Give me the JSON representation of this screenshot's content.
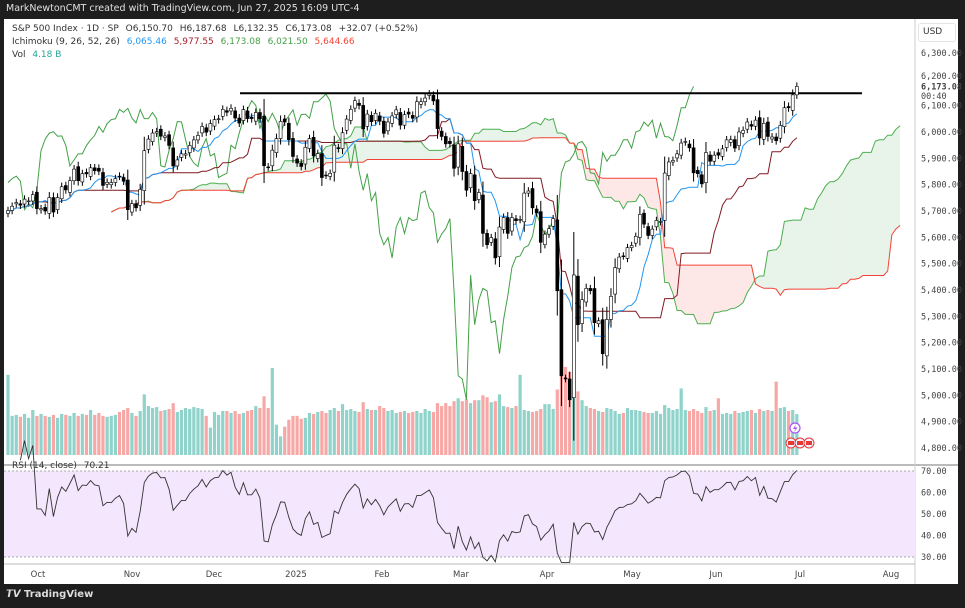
{
  "header": {
    "attribution": "MarkNewtonCMT created with TradingView.com, Jun 27, 2025 16:09 UTC-4"
  },
  "legend": {
    "symbol": "S&P 500 Index · 1D · SP",
    "open": "O6,150.70",
    "high": "H6,187.68",
    "low": "L6,132.35",
    "close": "C6,173.08",
    "change": "+32.07 (+0.52%)",
    "ichimoku_label": "Ichimoku (9, 26, 52, 26)",
    "ichimoku_values": [
      "6,065.46",
      "5,977.55",
      "6,173.08",
      "6,021.50",
      "5,644.66"
    ],
    "vol_label": "Vol",
    "vol_value": "4.18 B",
    "rsi_label": "RSI (14, close)",
    "rsi_value": "70.21"
  },
  "price_axis": {
    "currency": "USD",
    "ticks": [
      "6,300.00",
      "6,200.00",
      "6,100.00",
      "6,000.00",
      "5,900.00",
      "5,800.00",
      "5,700.00",
      "5,600.00",
      "5,500.00",
      "5,400.00",
      "5,300.00",
      "5,200.00",
      "5,100.00",
      "5,000.00",
      "4,900.00",
      "4,800.00"
    ],
    "last_price": "6,173.08",
    "countdown": "00:40"
  },
  "rsi_axis": {
    "ticks": [
      "70.00",
      "60.00",
      "50.00",
      "40.00",
      "30.00"
    ]
  },
  "brand": "TradingView",
  "colors": {
    "tenkan": "#2196f3",
    "kijun": "#801922",
    "lagging": "#43a047",
    "span_a": "#4caf50",
    "span_b": "#f44336",
    "vol_up": "#8fd3cb",
    "vol_down": "#f7a8a6",
    "rsi_bg": "#f3e6fd"
  },
  "chart_data": {
    "type": "candlestick",
    "symbol": "S&P 500 Index",
    "interval": "1D",
    "x_tick_labels": [
      "Oct",
      "Nov",
      "Dec",
      "2025",
      "Feb",
      "Mar",
      "Apr",
      "May",
      "Jun",
      "Jul",
      "Aug"
    ],
    "ylim": [
      4750,
      6380
    ],
    "resistance_level": 6147,
    "close": [
      5702,
      5718,
      5732,
      5722,
      5745,
      5738,
      5762,
      5709,
      5709,
      5700,
      5751,
      5696,
      5751,
      5792,
      5780,
      5815,
      5859,
      5815,
      5842,
      5841,
      5864,
      5853,
      5851,
      5797,
      5809,
      5808,
      5823,
      5832,
      5813,
      5705,
      5728,
      5712,
      5782,
      5929,
      5973,
      5996,
      6001,
      5984,
      5985,
      5949,
      5871,
      5894,
      5917,
      5917,
      5949,
      5970,
      5987,
      6021,
      5999,
      6032,
      6047,
      6050,
      6086,
      6075,
      6090,
      6053,
      6034,
      6085,
      6051,
      6051,
      6074,
      6050,
      5872,
      5867,
      5931,
      5975,
      6040,
      6038,
      5971,
      5907,
      5882,
      5869,
      5942,
      5975,
      5909,
      5918,
      5827,
      5836,
      5843,
      5950,
      5937,
      5997,
      6049,
      6086,
      6119,
      6101,
      6012,
      6068,
      6039,
      6071,
      6041,
      5995,
      6038,
      6061,
      6084,
      6026,
      6066,
      6068,
      6052,
      6115,
      6115,
      6129,
      6144,
      6118,
      6013,
      5983,
      5955,
      5956,
      5862,
      5955,
      5850,
      5779,
      5842,
      5739,
      5770,
      5615,
      5572,
      5599,
      5522,
      5639,
      5675,
      5615,
      5675,
      5663,
      5668,
      5768,
      5776,
      5712,
      5693,
      5581,
      5612,
      5633,
      5671,
      5397,
      5074,
      5062,
      4983,
      5457,
      5268,
      5363,
      5406,
      5397,
      5276,
      5283,
      5158,
      5288,
      5376,
      5485,
      5525,
      5529,
      5561,
      5569,
      5604,
      5687,
      5650,
      5607,
      5631,
      5664,
      5660,
      5844,
      5886,
      5892,
      5917,
      5958,
      5964,
      5940,
      5845,
      5842,
      5803,
      5922,
      5889,
      5912,
      5912,
      5936,
      5970,
      5971,
      5939,
      6000,
      6006,
      6038,
      6022,
      6045,
      5977,
      6033,
      5983,
      5981,
      5967,
      6025,
      6092,
      6092,
      6141,
      6173
    ],
    "volume_billions": [
      8.2,
      4.0,
      4.1,
      3.9,
      4.2,
      3.8,
      4.6,
      4.0,
      4.2,
      4.0,
      3.9,
      4.1,
      3.8,
      4.2,
      4.1,
      4.0,
      4.3,
      4.0,
      4.2,
      4.1,
      4.6,
      4.1,
      4.3,
      4.0,
      3.9,
      4.0,
      4.1,
      4.4,
      4.6,
      4.8,
      4.3,
      4.0,
      4.5,
      6.2,
      5.0,
      4.8,
      4.9,
      4.5,
      4.6,
      4.7,
      5.3,
      4.4,
      4.6,
      4.8,
      4.7,
      4.9,
      4.8,
      4.7,
      4.0,
      2.8,
      4.4,
      4.1,
      4.5,
      4.5,
      4.3,
      4.5,
      4.2,
      4.3,
      4.5,
      4.6,
      5.0,
      4.8,
      6.0,
      4.8,
      8.9,
      3.1,
      1.9,
      2.9,
      3.6,
      4.0,
      4.0,
      3.7,
      3.8,
      4.3,
      4.2,
      4.4,
      4.5,
      4.3,
      4.6,
      4.8,
      4.5,
      5.2,
      4.6,
      4.7,
      4.5,
      4.4,
      5.4,
      4.7,
      4.6,
      4.6,
      5.0,
      4.8,
      4.5,
      4.6,
      4.3,
      4.4,
      4.5,
      4.3,
      4.4,
      4.5,
      4.3,
      4.7,
      4.5,
      4.4,
      5.3,
      5.0,
      5.3,
      5.0,
      5.5,
      5.8,
      5.5,
      5.7,
      5.3,
      5.6,
      5.6,
      6.1,
      5.9,
      5.4,
      5.5,
      6.2,
      5.0,
      4.9,
      4.8,
      5.0,
      8.2,
      4.6,
      4.5,
      4.4,
      4.5,
      4.7,
      5.2,
      5.2,
      4.7,
      6.7,
      8.8,
      9.0,
      8.5,
      9.2,
      6.5,
      5.6,
      5.0,
      4.8,
      4.7,
      4.5,
      4.4,
      4.8,
      4.7,
      4.5,
      4.2,
      4.3,
      4.8,
      4.6,
      4.6,
      4.5,
      4.4,
      4.3,
      4.3,
      4.5,
      4.2,
      5.1,
      4.8,
      4.6,
      4.7,
      6.8,
      4.6,
      4.5,
      4.7,
      4.5,
      4.3,
      4.9,
      4.5,
      4.6,
      5.8,
      4.2,
      4.3,
      4.2,
      4.5,
      4.3,
      4.4,
      4.5,
      4.6,
      4.3,
      4.7,
      4.5,
      4.6,
      4.5,
      7.5,
      4.8,
      4.9,
      4.5,
      4.6,
      4.18
    ],
    "indicators": [
      "Ichimoku (9, 26, 52, 26)",
      "Volume",
      "RSI (14, close)"
    ],
    "rsi_levels": [
      70,
      30
    ],
    "grid": false
  }
}
